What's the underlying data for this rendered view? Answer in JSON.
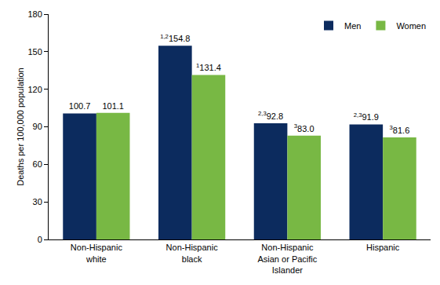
{
  "chart_data": {
    "type": "bar",
    "categories": [
      "Non-Hispanic white",
      "Non-Hispanic black",
      "Non-Hispanic Asian or Pacific Islander",
      "Hispanic"
    ],
    "series": [
      {
        "name": "Men",
        "color": "#0c2b5e",
        "values": [
          100.7,
          154.8,
          92.8,
          91.9
        ],
        "value_labels": [
          "100.7",
          "154.8",
          "92.8",
          "91.9"
        ],
        "notes": [
          null,
          "1,2",
          "2,3",
          "2,3"
        ]
      },
      {
        "name": "Women",
        "color": "#78b844",
        "values": [
          101.1,
          131.4,
          83.0,
          81.6
        ],
        "value_labels": [
          "101.1",
          "131.4",
          "83.0",
          "81.6"
        ],
        "notes": [
          null,
          "1",
          "3",
          "3"
        ]
      }
    ],
    "y_label": "Deaths per 100,000 population",
    "ylim": [
      0,
      180
    ],
    "yticks": [
      0,
      30,
      60,
      90,
      120,
      150,
      180
    ],
    "grid": false,
    "legend": "top-right",
    "data_labels": true
  }
}
